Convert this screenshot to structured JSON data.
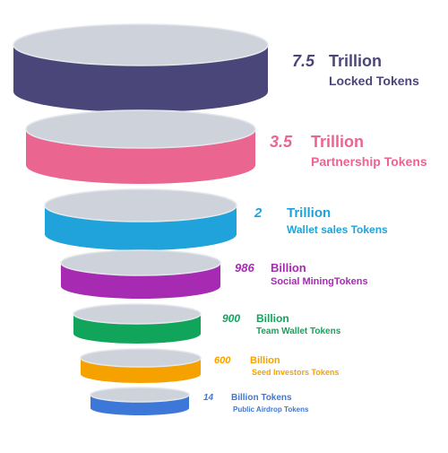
{
  "colors": {
    "disc_top": "#ced3db",
    "disc_rim": "#e4e7ec"
  },
  "tiers": [
    {
      "amount": "7.5",
      "unit": "Trillion",
      "name": "Locked Tokens",
      "color": "#4b4679",
      "text_color": "#4b4679"
    },
    {
      "amount": "3.5",
      "unit": "Trillion",
      "name": "Partnership Tokens",
      "color": "#ea6590",
      "text_color": "#ea6590"
    },
    {
      "amount": "2",
      "unit": "Trillion",
      "name": "Wallet sales Tokens",
      "color": "#1fa3da",
      "text_color": "#1fa3da"
    },
    {
      "amount": "986",
      "unit": "Billion",
      "name": "Social MiningTokens",
      "color": "#a62bb2",
      "text_color": "#a62bb2"
    },
    {
      "amount": "900",
      "unit": "Billion",
      "name": "Team Wallet Tokens",
      "color": "#11a55b",
      "text_color": "#11a55b"
    },
    {
      "amount": "600",
      "unit": "Billion",
      "name": "Seed Investors Tokens",
      "color": "#f5a200",
      "text_color": "#f5a200"
    },
    {
      "amount": "14",
      "unit": "Billion Tokens",
      "name": "Public Airdrop Tokens",
      "color": "#3d78d8",
      "text_color": "#3d78d8"
    }
  ]
}
